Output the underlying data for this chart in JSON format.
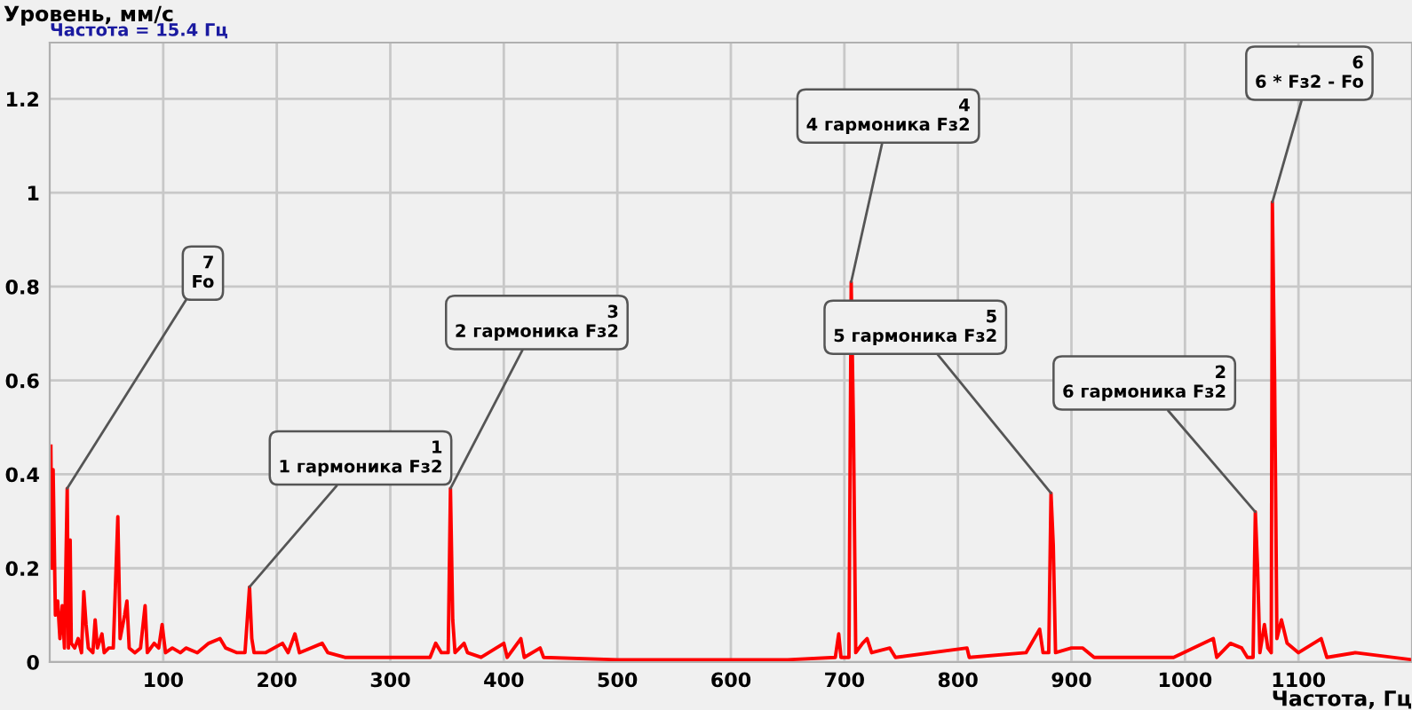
{
  "chart_data": {
    "type": "line",
    "ylabel": "Уровень, мм/с",
    "xlabel": "Частота, Гц",
    "annotations": [
      "Частота = 15.4 Гц",
      {
        "text": "7\nFo",
        "x": 15.4,
        "y": 0.37
      },
      {
        "text": "1\n1 гармоника Fз2",
        "x": 176,
        "y": 0.16
      },
      {
        "text": "3\n2 гармоника Fз2",
        "x": 353,
        "y": 0.37
      },
      {
        "text": "4\n4 гармоника Fз2",
        "x": 706,
        "y": 0.81
      },
      {
        "text": "5\n5 гармоника Fз2",
        "x": 882,
        "y": 0.36
      },
      {
        "text": "2\n6 гармоника Fз2",
        "x": 1062,
        "y": 0.32
      },
      {
        "text": "6\n6 * Fз2 - Fo",
        "x": 1077,
        "y": 0.98
      }
    ],
    "xlim": [
      0,
      1200
    ],
    "xticks": [
      100,
      200,
      300,
      400,
      500,
      600,
      700,
      800,
      900,
      1000,
      1100
    ],
    "ylim": [
      0,
      1.32
    ],
    "yticks": [
      0,
      0.2,
      0.4,
      0.6,
      0.8,
      1,
      1.2
    ],
    "grid": true,
    "legend": false,
    "marker": "none",
    "line_style": "solid",
    "series": [
      {
        "color": "#ff0000",
        "x": [
          1,
          2,
          3,
          5,
          7,
          9,
          11,
          13,
          15.4,
          16.5,
          18,
          19,
          22,
          25,
          28,
          30,
          32,
          34,
          38,
          40,
          42,
          46,
          48,
          52,
          56,
          60,
          62,
          66,
          68,
          70,
          75,
          80,
          84,
          86,
          92,
          96,
          99,
          102,
          108,
          115,
          120,
          130,
          140,
          150,
          155,
          165,
          172,
          176,
          178,
          180,
          190,
          205,
          210,
          216,
          220,
          240,
          245,
          260,
          300,
          335,
          340,
          345,
          351,
          353,
          355,
          357,
          365,
          368,
          380,
          400,
          403,
          415,
          418,
          432,
          435,
          500,
          600,
          650,
          692,
          695,
          697,
          704,
          706,
          708,
          710,
          716,
          720,
          724,
          740,
          745,
          808,
          810,
          860,
          872,
          875,
          880,
          882,
          884,
          886,
          900,
          910,
          920,
          990,
          1025,
          1028,
          1040,
          1050,
          1055,
          1060,
          1062,
          1064,
          1066,
          1070,
          1073,
          1076,
          1077,
          1079,
          1081,
          1085,
          1090,
          1100,
          1120,
          1125,
          1150,
          1200
        ],
        "values": [
          0.46,
          0.2,
          0.41,
          0.1,
          0.13,
          0.05,
          0.12,
          0.03,
          0.37,
          0.03,
          0.26,
          0.04,
          0.03,
          0.05,
          0.02,
          0.15,
          0.08,
          0.03,
          0.02,
          0.09,
          0.03,
          0.06,
          0.02,
          0.03,
          0.03,
          0.31,
          0.05,
          0.1,
          0.13,
          0.03,
          0.02,
          0.03,
          0.12,
          0.02,
          0.04,
          0.03,
          0.08,
          0.02,
          0.03,
          0.02,
          0.03,
          0.02,
          0.04,
          0.05,
          0.03,
          0.02,
          0.02,
          0.16,
          0.05,
          0.02,
          0.02,
          0.04,
          0.02,
          0.06,
          0.02,
          0.04,
          0.02,
          0.01,
          0.01,
          0.01,
          0.04,
          0.02,
          0.02,
          0.37,
          0.09,
          0.02,
          0.04,
          0.02,
          0.01,
          0.04,
          0.01,
          0.05,
          0.01,
          0.03,
          0.01,
          0.005,
          0.005,
          0.005,
          0.01,
          0.06,
          0.01,
          0.01,
          0.81,
          0.5,
          0.02,
          0.04,
          0.05,
          0.02,
          0.03,
          0.01,
          0.03,
          0.01,
          0.02,
          0.07,
          0.02,
          0.02,
          0.36,
          0.25,
          0.02,
          0.03,
          0.03,
          0.01,
          0.01,
          0.05,
          0.01,
          0.04,
          0.03,
          0.01,
          0.01,
          0.32,
          0.2,
          0.02,
          0.08,
          0.03,
          0.02,
          0.98,
          0.6,
          0.05,
          0.09,
          0.04,
          0.02,
          0.05,
          0.01,
          0.02,
          0.005
        ]
      }
    ]
  }
}
